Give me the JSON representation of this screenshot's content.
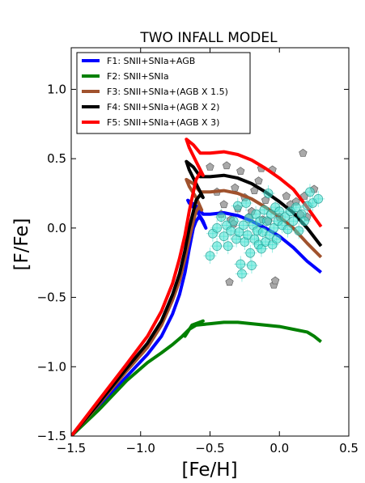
{
  "chart_data": {
    "type": "line",
    "title": "TWO INFALL MODEL",
    "xlabel": "[Fe/H]",
    "ylabel": "[F/Fe]",
    "xlim": [
      -1.5,
      0.5
    ],
    "ylim": [
      -1.5,
      1.3
    ],
    "xticks": [
      -1.5,
      -1.0,
      -0.5,
      0.0,
      0.5
    ],
    "xtick_labels": [
      "−1.5",
      "−1.0",
      "−0.5",
      "0.0",
      "0.5"
    ],
    "yticks": [
      -1.5,
      -1.0,
      -0.5,
      0.0,
      0.5,
      1.0
    ],
    "ytick_labels": [
      "−1.5",
      "−1.0",
      "−0.5",
      "0.0",
      "0.5",
      "1.0"
    ],
    "grid": false,
    "legend_position": "top-left",
    "series": [
      {
        "name": "F1: SNII+SNIa+AGB",
        "color": "#0000ff",
        "points": [
          [
            -1.5,
            -1.5
          ],
          [
            -1.3,
            -1.29
          ],
          [
            -1.1,
            -1.07
          ],
          [
            -0.95,
            -0.91
          ],
          [
            -0.85,
            -0.78
          ],
          [
            -0.77,
            -0.62
          ],
          [
            -0.72,
            -0.48
          ],
          [
            -0.68,
            -0.32
          ],
          [
            -0.65,
            -0.15
          ],
          [
            -0.62,
            0.0
          ],
          [
            -0.6,
            0.05
          ],
          [
            -0.58,
            0.08
          ],
          [
            -0.56,
            0.06
          ],
          [
            -0.54,
            0.02
          ],
          [
            -0.53,
            0.0
          ],
          [
            -0.55,
            0.05
          ],
          [
            -0.6,
            0.13
          ],
          [
            -0.65,
            0.18
          ],
          [
            -0.66,
            0.2
          ],
          [
            -0.6,
            0.16
          ],
          [
            -0.55,
            0.1
          ],
          [
            -0.5,
            0.1
          ],
          [
            -0.4,
            0.11
          ],
          [
            -0.3,
            0.09
          ],
          [
            -0.2,
            0.05
          ],
          [
            -0.1,
            0.0
          ],
          [
            0.0,
            -0.06
          ],
          [
            0.1,
            -0.14
          ],
          [
            0.2,
            -0.24
          ],
          [
            0.3,
            -0.32
          ]
        ]
      },
      {
        "name": "F2: SNII+SNIa",
        "color": "#008000",
        "points": [
          [
            -1.5,
            -1.5
          ],
          [
            -1.3,
            -1.31
          ],
          [
            -1.1,
            -1.1
          ],
          [
            -0.95,
            -0.97
          ],
          [
            -0.85,
            -0.9
          ],
          [
            -0.77,
            -0.84
          ],
          [
            -0.7,
            -0.78
          ],
          [
            -0.64,
            -0.72
          ],
          [
            -0.6,
            -0.69
          ],
          [
            -0.55,
            -0.67
          ],
          [
            -0.63,
            -0.7
          ],
          [
            -0.68,
            -0.78
          ],
          [
            -0.65,
            -0.73
          ],
          [
            -0.6,
            -0.7
          ],
          [
            -0.5,
            -0.69
          ],
          [
            -0.4,
            -0.68
          ],
          [
            -0.3,
            -0.68
          ],
          [
            -0.2,
            -0.69
          ],
          [
            -0.1,
            -0.7
          ],
          [
            0.0,
            -0.71
          ],
          [
            0.1,
            -0.73
          ],
          [
            0.2,
            -0.75
          ],
          [
            0.25,
            -0.78
          ],
          [
            0.3,
            -0.82
          ]
        ]
      },
      {
        "name": "F3: SNII+SNIa+(AGB X 1.5)",
        "color": "#a0522d",
        "points": [
          [
            -1.5,
            -1.5
          ],
          [
            -1.3,
            -1.27
          ],
          [
            -1.1,
            -1.03
          ],
          [
            -0.95,
            -0.86
          ],
          [
            -0.85,
            -0.7
          ],
          [
            -0.77,
            -0.52
          ],
          [
            -0.72,
            -0.38
          ],
          [
            -0.68,
            -0.22
          ],
          [
            -0.65,
            -0.08
          ],
          [
            -0.62,
            0.05
          ],
          [
            -0.6,
            0.12
          ],
          [
            -0.58,
            0.15
          ],
          [
            -0.56,
            0.13
          ],
          [
            -0.6,
            0.22
          ],
          [
            -0.65,
            0.3
          ],
          [
            -0.67,
            0.35
          ],
          [
            -0.62,
            0.32
          ],
          [
            -0.57,
            0.26
          ],
          [
            -0.5,
            0.26
          ],
          [
            -0.4,
            0.27
          ],
          [
            -0.3,
            0.25
          ],
          [
            -0.2,
            0.21
          ],
          [
            -0.1,
            0.15
          ],
          [
            0.0,
            0.08
          ],
          [
            0.1,
            0.0
          ],
          [
            0.2,
            -0.11
          ],
          [
            0.3,
            -0.21
          ]
        ]
      },
      {
        "name": "F4: SNII+SNIa+(AGB X 2)",
        "color": "#000000",
        "points": [
          [
            -1.5,
            -1.5
          ],
          [
            -1.3,
            -1.26
          ],
          [
            -1.1,
            -1.01
          ],
          [
            -0.95,
            -0.83
          ],
          [
            -0.85,
            -0.67
          ],
          [
            -0.77,
            -0.48
          ],
          [
            -0.72,
            -0.33
          ],
          [
            -0.68,
            -0.16
          ],
          [
            -0.65,
            0.0
          ],
          [
            -0.62,
            0.12
          ],
          [
            -0.6,
            0.2
          ],
          [
            -0.57,
            0.24
          ],
          [
            -0.55,
            0.22
          ],
          [
            -0.6,
            0.32
          ],
          [
            -0.65,
            0.42
          ],
          [
            -0.67,
            0.48
          ],
          [
            -0.62,
            0.44
          ],
          [
            -0.57,
            0.37
          ],
          [
            -0.5,
            0.37
          ],
          [
            -0.4,
            0.38
          ],
          [
            -0.3,
            0.36
          ],
          [
            -0.2,
            0.32
          ],
          [
            -0.1,
            0.26
          ],
          [
            0.0,
            0.19
          ],
          [
            0.1,
            0.11
          ],
          [
            0.2,
            0.0
          ],
          [
            0.3,
            -0.13
          ]
        ]
      },
      {
        "name": "F5: SNII+SNIa+(AGB X 3)",
        "color": "#ff0000",
        "points": [
          [
            -1.5,
            -1.5
          ],
          [
            -1.3,
            -1.24
          ],
          [
            -1.1,
            -0.98
          ],
          [
            -0.95,
            -0.78
          ],
          [
            -0.85,
            -0.6
          ],
          [
            -0.77,
            -0.4
          ],
          [
            -0.72,
            -0.22
          ],
          [
            -0.68,
            -0.05
          ],
          [
            -0.65,
            0.12
          ],
          [
            -0.62,
            0.26
          ],
          [
            -0.6,
            0.35
          ],
          [
            -0.57,
            0.4
          ],
          [
            -0.55,
            0.38
          ],
          [
            -0.6,
            0.48
          ],
          [
            -0.65,
            0.58
          ],
          [
            -0.67,
            0.64
          ],
          [
            -0.62,
            0.6
          ],
          [
            -0.57,
            0.54
          ],
          [
            -0.5,
            0.54
          ],
          [
            -0.4,
            0.55
          ],
          [
            -0.3,
            0.53
          ],
          [
            -0.2,
            0.49
          ],
          [
            -0.1,
            0.43
          ],
          [
            0.0,
            0.36
          ],
          [
            0.1,
            0.28
          ],
          [
            0.2,
            0.15
          ],
          [
            0.3,
            0.01
          ]
        ]
      }
    ],
    "observations_circles": {
      "color": "#40e0d0",
      "points": [
        [
          -0.5,
          -0.2
        ],
        [
          -0.48,
          -0.04
        ],
        [
          -0.45,
          -0.13
        ],
        [
          -0.45,
          0.0
        ],
        [
          -0.42,
          0.08
        ],
        [
          -0.4,
          -0.06
        ],
        [
          -0.38,
          0.02
        ],
        [
          -0.37,
          -0.13
        ],
        [
          -0.35,
          -0.02
        ],
        [
          -0.33,
          0.05
        ],
        [
          -0.31,
          -0.08
        ],
        [
          -0.3,
          0.16
        ],
        [
          -0.29,
          -0.03
        ],
        [
          -0.28,
          -0.26
        ],
        [
          -0.27,
          -0.33
        ],
        [
          -0.26,
          0.02
        ],
        [
          -0.25,
          -0.1
        ],
        [
          -0.24,
          0.18
        ],
        [
          -0.23,
          -0.05
        ],
        [
          -0.22,
          0.07
        ],
        [
          -0.21,
          -0.18
        ],
        [
          -0.2,
          -0.27
        ],
        [
          -0.19,
          0.02
        ],
        [
          -0.18,
          -0.08
        ],
        [
          -0.17,
          0.1
        ],
        [
          -0.16,
          -0.02
        ],
        [
          -0.15,
          -0.12
        ],
        [
          -0.14,
          0.05
        ],
        [
          -0.13,
          -0.15
        ],
        [
          -0.12,
          -0.03
        ],
        [
          -0.11,
          0.13
        ],
        [
          -0.1,
          -0.1
        ],
        [
          -0.09,
          0.05
        ],
        [
          -0.08,
          0.25
        ],
        [
          -0.07,
          -0.05
        ],
        [
          -0.06,
          0.1
        ],
        [
          -0.05,
          -0.12
        ],
        [
          -0.04,
          0.0
        ],
        [
          -0.03,
          0.15
        ],
        [
          -0.02,
          -0.08
        ],
        [
          -0.01,
          0.05
        ],
        [
          0.0,
          0.12
        ],
        [
          0.02,
          0.02
        ],
        [
          0.04,
          0.08
        ],
        [
          0.06,
          -0.01
        ],
        [
          0.08,
          0.12
        ],
        [
          0.1,
          0.05
        ],
        [
          0.12,
          0.15
        ],
        [
          0.14,
          -0.02
        ],
        [
          0.16,
          0.1
        ],
        [
          0.18,
          0.05
        ],
        [
          0.2,
          0.16
        ],
        [
          0.22,
          0.26
        ],
        [
          0.24,
          0.18
        ],
        [
          0.28,
          0.21
        ]
      ]
    },
    "observations_pentagons": {
      "color": "#a9a9a9",
      "points": [
        [
          -0.5,
          0.44
        ],
        [
          -0.45,
          0.26
        ],
        [
          -0.42,
          0.1
        ],
        [
          -0.4,
          0.17
        ],
        [
          -0.38,
          0.45
        ],
        [
          -0.36,
          -0.39
        ],
        [
          -0.35,
          0.06
        ],
        [
          -0.33,
          0.03
        ],
        [
          -0.32,
          0.29
        ],
        [
          -0.3,
          0.14
        ],
        [
          -0.28,
          0.41
        ],
        [
          -0.25,
          0.22
        ],
        [
          -0.22,
          0.08
        ],
        [
          -0.2,
          0.12
        ],
        [
          -0.18,
          0.27
        ],
        [
          -0.15,
          0.34
        ],
        [
          -0.13,
          0.43
        ],
        [
          -0.12,
          0.06
        ],
        [
          -0.1,
          0.2
        ],
        [
          -0.08,
          0.05
        ],
        [
          -0.05,
          0.42
        ],
        [
          -0.04,
          -0.41
        ],
        [
          -0.03,
          -0.38
        ],
        [
          0.0,
          0.08
        ],
        [
          0.05,
          0.23
        ],
        [
          0.08,
          0.17
        ],
        [
          0.12,
          0.19
        ],
        [
          0.15,
          0.1
        ],
        [
          0.17,
          0.54
        ],
        [
          0.18,
          0.23
        ],
        [
          0.2,
          0.08
        ],
        [
          0.25,
          0.28
        ]
      ]
    }
  }
}
